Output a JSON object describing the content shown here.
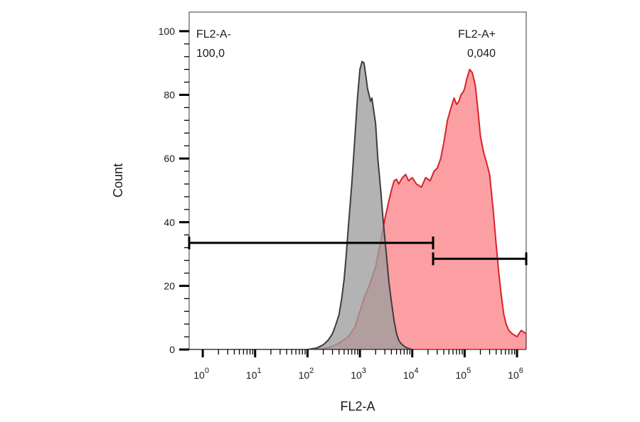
{
  "chart_data": {
    "type": "area",
    "xlabel": "FL2-A",
    "ylabel": "Count",
    "x_scale": "log",
    "xlim": [
      0.55,
      1500000
    ],
    "ylim": [
      0,
      106
    ],
    "y_ticks": [
      0,
      20,
      40,
      60,
      80,
      100
    ],
    "y_tick_labels": [
      "0",
      "20",
      "40",
      "60",
      "80",
      "100"
    ],
    "x_ticks": [
      {
        "value": 1,
        "base": "10",
        "exp": "0"
      },
      {
        "value": 10,
        "base": "10",
        "exp": "1"
      },
      {
        "value": 100,
        "base": "10",
        "exp": "2"
      },
      {
        "value": 1000,
        "base": "10",
        "exp": "3"
      },
      {
        "value": 10000,
        "base": "10",
        "exp": "4"
      },
      {
        "value": 100000,
        "base": "10",
        "exp": "5"
      },
      {
        "value": 1000000,
        "base": "10",
        "exp": "6"
      }
    ],
    "grid": false,
    "series": [
      {
        "color": "#d8222b",
        "fill": "#fc9fa3",
        "x": [
          0.55,
          100,
          200,
          300,
          400,
          600,
          800,
          1000,
          1200,
          1500,
          2000,
          2500,
          3000,
          3500,
          4000,
          4500,
          5000,
          5500,
          6500,
          7500,
          8500,
          10000,
          12000,
          15000,
          18000,
          22000,
          26000,
          30000,
          35000,
          40000,
          47000,
          55000,
          63000,
          70000,
          78000,
          85000,
          90000,
          95000,
          100000,
          110000,
          125000,
          140000,
          160000,
          180000,
          200000,
          230000,
          260000,
          300000,
          350000,
          400000,
          450000,
          500000,
          560000,
          620000,
          700000,
          800000,
          900000,
          1000000,
          1200000,
          1500000
        ],
        "y": [
          0,
          0,
          0.3,
          1,
          2,
          4,
          7,
          12,
          16,
          20,
          26,
          34,
          41,
          46,
          50,
          53,
          53.5,
          52,
          54,
          55,
          53,
          54,
          52,
          51,
          54,
          53,
          56,
          57,
          60,
          65,
          72,
          76,
          79,
          77,
          78,
          80,
          80.5,
          81,
          82,
          85,
          88,
          87,
          83,
          75,
          67,
          62,
          59,
          55,
          44,
          33,
          24,
          17,
          11,
          8,
          6,
          5,
          4.5,
          4,
          6,
          5
        ]
      },
      {
        "color": "#3d3d3d",
        "fill": "#9e9e9e",
        "x": [
          0.55,
          100,
          150,
          200,
          250,
          300,
          350,
          400,
          450,
          500,
          550,
          600,
          700,
          800,
          900,
          1000,
          1100,
          1200,
          1300,
          1400,
          1500,
          1600,
          1700,
          1800,
          2000,
          2200,
          2500,
          2800,
          3200,
          3600,
          4000,
          4500,
          5000,
          5500,
          6000,
          7000,
          8000,
          9000,
          10000
        ],
        "y": [
          0,
          0,
          0.5,
          1.5,
          3,
          5,
          8,
          11,
          16,
          22,
          30,
          38,
          52,
          66,
          79,
          88,
          90.5,
          90,
          86,
          82,
          80,
          78,
          79,
          76,
          71,
          60,
          50,
          40,
          30,
          21,
          15,
          9,
          5,
          3,
          2,
          1,
          0.5,
          0.2,
          0
        ]
      }
    ],
    "gates": [
      {
        "label": "FL2-A-",
        "value": "100,0",
        "x_start": 0.55,
        "x_end": 25000,
        "y": 33.5
      },
      {
        "label": "FL2-A+",
        "value": "0,040",
        "x_start": 25000,
        "x_end": 1500000,
        "y": 28.5
      }
    ]
  }
}
